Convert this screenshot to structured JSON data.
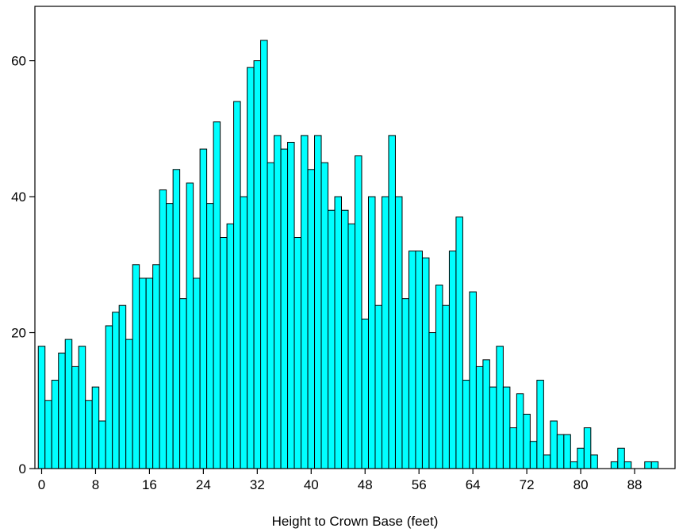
{
  "chart_data": {
    "type": "bar",
    "title": "",
    "xlabel": "Height to Crown Base (feet)",
    "ylabel": "",
    "xlim": [
      -1,
      94
    ],
    "ylim": [
      0,
      68
    ],
    "grid": false,
    "legend": "none",
    "bar_color": "#00ffff",
    "edge_color": "#000000",
    "x_ticks": [
      0,
      8,
      16,
      24,
      32,
      40,
      48,
      56,
      64,
      72,
      80,
      88
    ],
    "y_ticks": [
      0,
      20,
      40,
      60
    ],
    "x": [
      0,
      1,
      2,
      3,
      4,
      5,
      6,
      7,
      8,
      9,
      10,
      11,
      12,
      13,
      14,
      15,
      16,
      17,
      18,
      19,
      20,
      21,
      22,
      23,
      24,
      25,
      26,
      27,
      28,
      29,
      30,
      31,
      32,
      33,
      34,
      35,
      36,
      37,
      38,
      39,
      40,
      41,
      42,
      43,
      44,
      45,
      46,
      47,
      48,
      49,
      50,
      51,
      52,
      53,
      54,
      55,
      56,
      57,
      58,
      59,
      60,
      61,
      62,
      63,
      64,
      65,
      66,
      67,
      68,
      69,
      70,
      71,
      72,
      73,
      74,
      75,
      76,
      77,
      78,
      79,
      80,
      81,
      82,
      83,
      84,
      85,
      86,
      87,
      88,
      89,
      90,
      91,
      92
    ],
    "values": [
      18,
      10,
      13,
      17,
      19,
      15,
      18,
      10,
      12,
      7,
      21,
      23,
      24,
      19,
      30,
      28,
      28,
      30,
      41,
      39,
      44,
      25,
      42,
      28,
      47,
      39,
      51,
      34,
      36,
      54,
      40,
      59,
      60,
      63,
      45,
      49,
      47,
      48,
      34,
      49,
      44,
      49,
      45,
      38,
      40,
      38,
      36,
      46,
      22,
      40,
      24,
      40,
      49,
      40,
      25,
      32,
      32,
      31,
      20,
      27,
      24,
      32,
      37,
      13,
      26,
      15,
      16,
      12,
      18,
      12,
      6,
      11,
      8,
      4,
      13,
      2,
      7,
      5,
      5,
      1,
      3,
      6,
      2,
      0,
      0,
      1,
      3,
      1,
      0,
      0,
      1,
      1,
      0
    ]
  }
}
